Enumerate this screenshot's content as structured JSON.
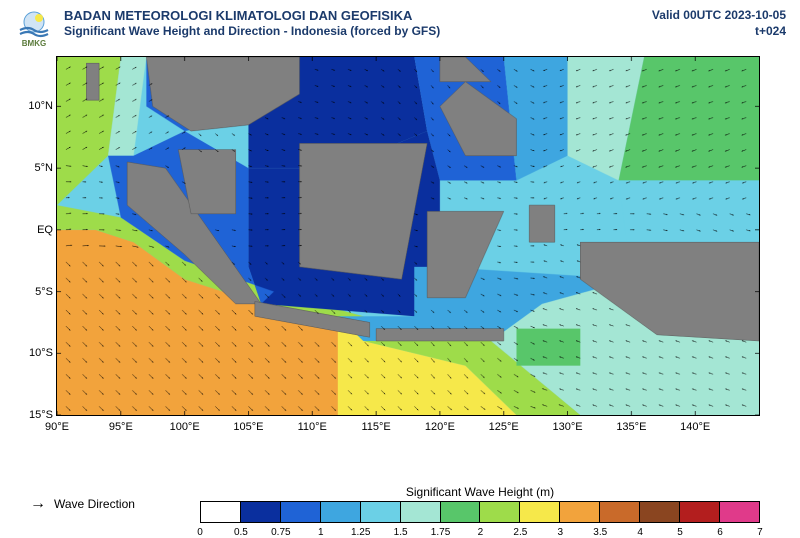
{
  "header": {
    "org": "BADAN METEOROLOGI KLIMATOLOGI DAN GEOFISIKA",
    "product": "Significant Wave Height and Direction - Indonesia (forced by GFS)",
    "logo_text": "BMKG",
    "valid": "Valid 00UTC 2023-10-05",
    "lead": "t+024"
  },
  "map": {
    "type": "geomap-contour",
    "xlim": [
      90,
      145
    ],
    "ylim": [
      -15,
      14
    ],
    "xlabel_suffix": "°E",
    "xticks": [
      90,
      95,
      100,
      105,
      110,
      115,
      120,
      125,
      130,
      135,
      140
    ],
    "yticks": [
      {
        "v": 10,
        "label": "10°N"
      },
      {
        "v": 5,
        "label": "5°N"
      },
      {
        "v": 0,
        "label": "EQ"
      },
      {
        "v": -5,
        "label": "5°S"
      },
      {
        "v": -10,
        "label": "10°S"
      },
      {
        "v": -15,
        "label": "15°S"
      }
    ],
    "land_color": "#808080",
    "border_color": "#000000",
    "grid": false,
    "tick_fontsize": 11,
    "arrow_color": "#000000",
    "arrow_length": 10,
    "arrow_spacing_deg": 1.3,
    "regions": [
      {
        "name": "indian_ocean_sw",
        "poly": [
          [
            90,
            -15
          ],
          [
            112,
            -15
          ],
          [
            112,
            -7
          ],
          [
            106,
            -6
          ],
          [
            100,
            -4
          ],
          [
            96,
            -1
          ],
          [
            93,
            0
          ],
          [
            90,
            0
          ]
        ],
        "v": 3.2
      },
      {
        "name": "indian_ocean_s",
        "poly": [
          [
            112,
            -15
          ],
          [
            126,
            -15
          ],
          [
            122,
            -11
          ],
          [
            114,
            -9
          ],
          [
            112,
            -7
          ]
        ],
        "v": 2.6
      },
      {
        "name": "west_sumatra_trans",
        "poly": [
          [
            90,
            0
          ],
          [
            93,
            0
          ],
          [
            96,
            -1
          ],
          [
            100,
            -4
          ],
          [
            106,
            -6
          ],
          [
            112,
            -7
          ],
          [
            114,
            -9
          ],
          [
            122,
            -11
          ],
          [
            126,
            -15
          ],
          [
            131,
            -15
          ],
          [
            124,
            -9
          ],
          [
            114,
            -7
          ],
          [
            107,
            -5
          ],
          [
            100,
            -2.5
          ],
          [
            95,
            1
          ],
          [
            90,
            2
          ]
        ],
        "v": 2.2
      },
      {
        "name": "andaman",
        "poly": [
          [
            90,
            14
          ],
          [
            95,
            14
          ],
          [
            94,
            6
          ],
          [
            90,
            2
          ]
        ],
        "v": 2.3
      },
      {
        "name": "andaman_e",
        "poly": [
          [
            95,
            14
          ],
          [
            97,
            14
          ],
          [
            96,
            6
          ],
          [
            94,
            6
          ]
        ],
        "v": 1.7
      },
      {
        "name": "thai_gulf_n",
        "poly": [
          [
            97,
            14
          ],
          [
            107,
            14
          ],
          [
            105,
            9
          ],
          [
            100,
            8
          ],
          [
            97,
            10
          ]
        ],
        "v": 0.9
      },
      {
        "name": "south_china_main",
        "poly": [
          [
            107,
            14
          ],
          [
            118,
            14
          ],
          [
            119,
            8
          ],
          [
            112,
            5
          ],
          [
            105,
            5
          ],
          [
            105,
            9
          ]
        ],
        "v": 0.6
      },
      {
        "name": "sulu_celebes",
        "poly": [
          [
            118,
            14
          ],
          [
            125,
            14
          ],
          [
            126,
            4
          ],
          [
            120,
            4
          ],
          [
            119,
            8
          ]
        ],
        "v": 0.8
      },
      {
        "name": "philippine_sea_w",
        "poly": [
          [
            125,
            14
          ],
          [
            130,
            14
          ],
          [
            130,
            6
          ],
          [
            126,
            4
          ]
        ],
        "v": 1.1
      },
      {
        "name": "philippine_sea_g",
        "poly": [
          [
            130,
            14
          ],
          [
            136,
            14
          ],
          [
            134,
            4
          ],
          [
            130,
            6
          ]
        ],
        "v": 1.6
      },
      {
        "name": "pacific_ne",
        "poly": [
          [
            136,
            14
          ],
          [
            145,
            14
          ],
          [
            145,
            4
          ],
          [
            134,
            4
          ]
        ],
        "v": 1.9
      },
      {
        "name": "pacific_e_mid",
        "poly": [
          [
            134,
            4
          ],
          [
            145,
            4
          ],
          [
            145,
            -6
          ],
          [
            135,
            -4
          ]
        ],
        "v": 1.3
      },
      {
        "name": "pacific_se",
        "poly": [
          [
            135,
            -4
          ],
          [
            145,
            -6
          ],
          [
            145,
            -15
          ],
          [
            131,
            -15
          ],
          [
            124,
            -9
          ],
          [
            128,
            -6
          ]
        ],
        "v": 1.6
      },
      {
        "name": "java_sea",
        "poly": [
          [
            105,
            -3
          ],
          [
            118,
            -3
          ],
          [
            118,
            -7
          ],
          [
            106,
            -6
          ]
        ],
        "v": 0.6
      },
      {
        "name": "java_sea_n",
        "poly": [
          [
            105,
            5
          ],
          [
            112,
            5
          ],
          [
            119,
            8
          ],
          [
            120,
            4
          ],
          [
            120,
            -3
          ],
          [
            105,
            -3
          ]
        ],
        "v": 0.5
      },
      {
        "name": "banda_arafura",
        "poly": [
          [
            120,
            -3
          ],
          [
            135,
            -4
          ],
          [
            128,
            -6
          ],
          [
            124,
            -9
          ],
          [
            114,
            -9
          ],
          [
            112,
            -7
          ],
          [
            114,
            -7
          ],
          [
            118,
            -7
          ],
          [
            118,
            -3
          ]
        ],
        "v": 1.2
      },
      {
        "name": "malacca",
        "poly": [
          [
            96,
            6
          ],
          [
            100,
            8
          ],
          [
            105,
            5
          ],
          [
            105,
            -3
          ],
          [
            106,
            -6
          ],
          [
            107,
            -5
          ],
          [
            100,
            -2.5
          ],
          [
            95,
            1
          ],
          [
            94,
            6
          ]
        ],
        "v": 0.9
      },
      {
        "name": "timor_spot",
        "poly": [
          [
            126,
            -8
          ],
          [
            131,
            -8
          ],
          [
            131,
            -11
          ],
          [
            126,
            -11
          ]
        ],
        "v": 1.8
      }
    ],
    "land": [
      {
        "name": "sumatra",
        "poly": [
          [
            95.5,
            5.5
          ],
          [
            98.5,
            5
          ],
          [
            106,
            -6
          ],
          [
            104,
            -6
          ],
          [
            100,
            -2
          ],
          [
            95.5,
            2
          ]
        ]
      },
      {
        "name": "malay",
        "poly": [
          [
            99.5,
            6.5
          ],
          [
            104,
            6.5
          ],
          [
            104,
            1.3
          ],
          [
            100.5,
            1.3
          ]
        ]
      },
      {
        "name": "indochina",
        "poly": [
          [
            97,
            14
          ],
          [
            109,
            14
          ],
          [
            109,
            11
          ],
          [
            105,
            8.5
          ],
          [
            100.5,
            8
          ],
          [
            97.5,
            10
          ]
        ]
      },
      {
        "name": "borneo",
        "poly": [
          [
            109,
            7
          ],
          [
            119,
            7
          ],
          [
            117,
            -4
          ],
          [
            109,
            -3
          ]
        ]
      },
      {
        "name": "java",
        "poly": [
          [
            105.5,
            -5.8
          ],
          [
            114.5,
            -7.5
          ],
          [
            114.5,
            -8.7
          ],
          [
            105.5,
            -7
          ]
        ]
      },
      {
        "name": "sulawesi",
        "poly": [
          [
            119,
            1.5
          ],
          [
            125,
            1.5
          ],
          [
            122,
            -5.5
          ],
          [
            119,
            -5.5
          ]
        ]
      },
      {
        "name": "lesser_sunda",
        "poly": [
          [
            115,
            -8
          ],
          [
            125,
            -8
          ],
          [
            125,
            -9
          ],
          [
            115,
            -9
          ]
        ]
      },
      {
        "name": "papua",
        "poly": [
          [
            131,
            -1
          ],
          [
            145,
            -1
          ],
          [
            145,
            -9
          ],
          [
            137,
            -8.5
          ],
          [
            131,
            -4
          ]
        ]
      },
      {
        "name": "halmahera",
        "poly": [
          [
            127,
            2
          ],
          [
            129,
            2
          ],
          [
            129,
            -1
          ],
          [
            127,
            -1
          ]
        ]
      },
      {
        "name": "philippines_n",
        "poly": [
          [
            120,
            14
          ],
          [
            122,
            14
          ],
          [
            124,
            12
          ],
          [
            120,
            12
          ]
        ]
      },
      {
        "name": "philippines_s",
        "poly": [
          [
            122,
            12
          ],
          [
            126,
            9
          ],
          [
            126,
            6
          ],
          [
            122,
            6
          ],
          [
            120,
            10
          ]
        ]
      },
      {
        "name": "andaman_is",
        "poly": [
          [
            92.3,
            13.5
          ],
          [
            93.3,
            13.5
          ],
          [
            93.3,
            10.5
          ],
          [
            92.3,
            10.5
          ]
        ]
      }
    ]
  },
  "legend": {
    "wave_direction_label": "Wave Direction",
    "colorbar_title": "Significant Wave Height (m)",
    "stops": [
      0,
      0.5,
      0.75,
      1,
      1.25,
      1.5,
      1.75,
      2,
      2.5,
      3,
      3.5,
      4,
      5,
      6,
      7
    ],
    "colors": [
      "#ffffff",
      "#0a2f9e",
      "#1f63d6",
      "#3ea6e0",
      "#6bd0e6",
      "#a4e6d4",
      "#58c66a",
      "#9edc4a",
      "#f6e84a",
      "#f2a33c",
      "#c96a2a",
      "#8a4520",
      "#b31e1e",
      "#e03a8a"
    ],
    "label_fontsize": 10
  },
  "logo_colors": {
    "cloud": "#d0e4f5",
    "wave": "#3a78b5",
    "sun": "#5aa0d8",
    "text": "#5a7a3a"
  }
}
